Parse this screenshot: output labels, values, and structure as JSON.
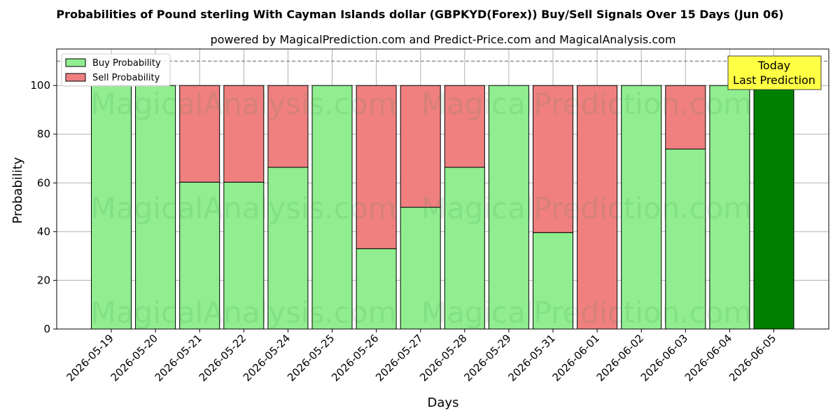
{
  "chart_data": {
    "type": "bar",
    "stacked": true,
    "title": "Probabilities of Pound sterling With Cayman Islands dollar (GBPKYD(Forex)) Buy/Sell Signals Over 15 Days (Jun 06)",
    "subtitle": "powered by MagicalPrediction.com and Predict-Price.com and MagicalAnalysis.com",
    "xlabel": "Days",
    "ylabel": "Probability",
    "ylim": [
      0,
      115
    ],
    "yticks": [
      0,
      20,
      40,
      60,
      80,
      100
    ],
    "reference_line": 110,
    "grid": true,
    "legend_position": "top-left",
    "categories": [
      "2026-05-19",
      "2026-05-20",
      "2026-05-21",
      "2026-05-22",
      "2026-05-24",
      "2026-05-25",
      "2026-05-26",
      "2026-05-27",
      "2026-05-28",
      "2026-05-29",
      "2026-05-31",
      "2026-06-01",
      "2026-06-02",
      "2026-06-03",
      "2026-06-04",
      "2026-06-05"
    ],
    "series": [
      {
        "name": "Buy Probability",
        "color": "#90ee90",
        "values": [
          100,
          100,
          60.3,
          60.3,
          66.4,
          100,
          33,
          50,
          66.4,
          100,
          39.6,
          0,
          100,
          73.9,
          100,
          100
        ]
      },
      {
        "name": "Sell Probability",
        "color": "#f08080",
        "values": [
          0,
          0,
          39.7,
          39.7,
          33.6,
          0,
          67,
          50,
          33.6,
          0,
          60.4,
          100,
          0,
          26.1,
          0,
          0
        ]
      }
    ],
    "highlight": {
      "index": 15,
      "color": "#008000",
      "label_line1": "Today",
      "label_line2": "Last Prediction"
    },
    "watermarks": [
      "MagicalAnalysis.com",
      "MagicalPrediction.com"
    ]
  }
}
